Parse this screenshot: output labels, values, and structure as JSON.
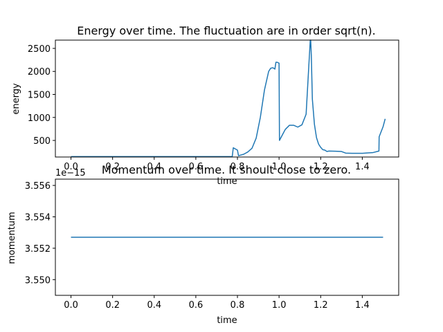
{
  "colors": {
    "series": "#1f77b4",
    "background": "#ffffff",
    "axes": "#000000"
  },
  "chart_data": [
    {
      "type": "line",
      "title": "Energy over time. The fluctuation are in order sqrt(n).",
      "xlabel": "time",
      "ylabel": "energy",
      "xlim": [
        -0.075,
        1.575
      ],
      "ylim": [
        140,
        2680
      ],
      "grid": false,
      "legend": "none",
      "xticks": [
        0.0,
        0.2,
        0.4,
        0.6,
        0.8,
        1.0,
        1.2,
        1.4
      ],
      "xtick_labels": [
        "0.0",
        "0.2",
        "0.4",
        "0.6",
        "0.8",
        "1.0",
        "1.2",
        "1.4"
      ],
      "yticks": [
        500,
        1000,
        1500,
        2000,
        2500
      ],
      "ytick_labels": [
        "500",
        "1000",
        "1500",
        "2000",
        "2500"
      ],
      "series": [
        {
          "x": [
            0.0,
            0.1,
            0.3,
            0.5,
            0.7,
            0.77,
            0.775,
            0.78,
            0.8,
            0.805,
            0.81,
            0.83,
            0.85,
            0.87,
            0.89,
            0.91,
            0.93,
            0.95,
            0.96,
            0.97,
            0.98,
            0.985,
            0.99,
            1.0,
            1.002,
            1.01,
            1.03,
            1.05,
            1.07,
            1.09,
            1.11,
            1.13,
            1.15,
            1.152,
            1.155,
            1.16,
            1.17,
            1.18,
            1.19,
            1.2,
            1.21,
            1.22,
            1.23,
            1.24,
            1.27,
            1.3,
            1.32,
            1.35,
            1.4,
            1.45,
            1.48,
            1.481,
            1.5,
            1.51
          ],
          "y": [
            150,
            150,
            150,
            150,
            150,
            150,
            150,
            340,
            290,
            170,
            175,
            200,
            250,
            330,
            550,
            1000,
            1600,
            2000,
            2070,
            2080,
            2050,
            2200,
            2200,
            2180,
            500,
            570,
            740,
            830,
            830,
            790,
            840,
            1070,
            2680,
            2680,
            2350,
            1400,
            850,
            560,
            420,
            350,
            300,
            290,
            260,
            270,
            265,
            260,
            225,
            220,
            220,
            235,
            270,
            580,
            800,
            970
          ]
        }
      ]
    },
    {
      "type": "line",
      "title": "Momentum over time. It shoult close to zero.",
      "xlabel": "time",
      "ylabel": "momentum",
      "offset_text": "1e−15",
      "xlim": [
        -0.075,
        1.575
      ],
      "ylim": [
        3.549,
        3.5564
      ],
      "grid": false,
      "legend": "none",
      "xticks": [
        0.0,
        0.2,
        0.4,
        0.6,
        0.8,
        1.0,
        1.2,
        1.4
      ],
      "xtick_labels": [
        "0.0",
        "0.2",
        "0.4",
        "0.6",
        "0.8",
        "1.0",
        "1.2",
        "1.4"
      ],
      "yticks": [
        3.55,
        3.552,
        3.554,
        3.556
      ],
      "ytick_labels": [
        "3.550",
        "3.552",
        "3.554",
        "3.556"
      ],
      "series": [
        {
          "x": [
            0.0,
            1.5
          ],
          "y": [
            3.5527,
            3.5527
          ]
        }
      ]
    }
  ]
}
